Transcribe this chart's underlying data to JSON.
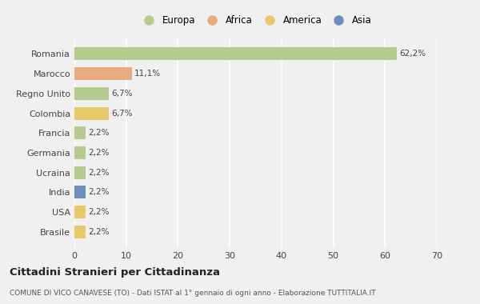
{
  "categories": [
    "Romania",
    "Marocco",
    "Regno Unito",
    "Colombia",
    "Francia",
    "Germania",
    "Ucraina",
    "India",
    "USA",
    "Brasile"
  ],
  "values": [
    62.2,
    11.1,
    6.7,
    6.7,
    2.2,
    2.2,
    2.2,
    2.2,
    2.2,
    2.2
  ],
  "labels": [
    "62,2%",
    "11,1%",
    "6,7%",
    "6,7%",
    "2,2%",
    "2,2%",
    "2,2%",
    "2,2%",
    "2,2%",
    "2,2%"
  ],
  "colors": [
    "#b5cc8e",
    "#e8aa7e",
    "#b5cc8e",
    "#e8c96a",
    "#b5cc8e",
    "#b5cc8e",
    "#b5cc8e",
    "#6a8fbf",
    "#e8c96a",
    "#e8c96a"
  ],
  "legend_labels": [
    "Europa",
    "Africa",
    "America",
    "Asia"
  ],
  "legend_colors": [
    "#b5cc8e",
    "#e8aa7e",
    "#e8c96a",
    "#6a8fbf"
  ],
  "title": "Cittadini Stranieri per Cittadinanza",
  "subtitle": "COMUNE DI VICO CANAVESE (TO) - Dati ISTAT al 1° gennaio di ogni anno - Elaborazione TUTTITALIA.IT",
  "xlim": [
    0,
    70
  ],
  "xticks": [
    0,
    10,
    20,
    30,
    40,
    50,
    60,
    70
  ],
  "background_color": "#f0f0f0",
  "bar_height": 0.65
}
